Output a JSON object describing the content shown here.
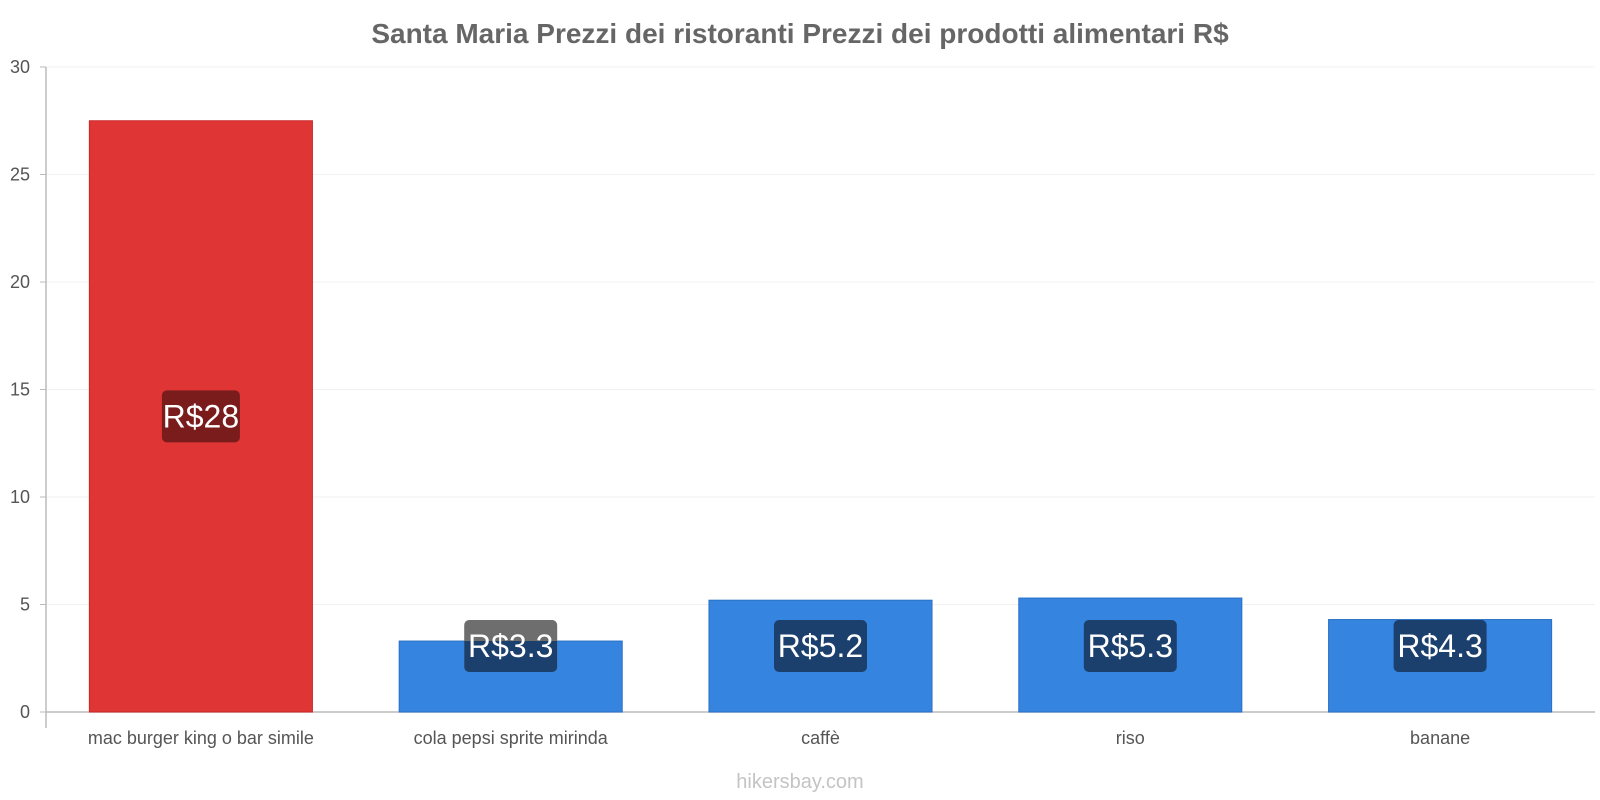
{
  "chart_data": {
    "type": "bar",
    "title": "Santa Maria Prezzi dei ristoranti Prezzi dei prodotti alimentari R$",
    "xlabel": "",
    "ylabel": "",
    "ylim": [
      0,
      30
    ],
    "yticks": [
      0,
      5,
      10,
      15,
      20,
      25,
      30
    ],
    "grid": true,
    "categories": [
      "mac burger king o bar simile",
      "cola pepsi sprite mirinda",
      "caffè",
      "riso",
      "banane"
    ],
    "values": [
      27.5,
      3.3,
      5.2,
      5.3,
      4.3
    ],
    "data_labels": [
      "R$28",
      "R$3.3",
      "R$5.2",
      "R$5.3",
      "R$4.3"
    ],
    "bar_colors": [
      "#e03535",
      "#3585e0",
      "#3585e0",
      "#3585e0",
      "#3585e0"
    ],
    "label_bg_colors": [
      "#7a1c1c",
      "#1c406e",
      "#1c406e",
      "#1c406e",
      "#1c406e"
    ],
    "label_bg_overflow_color": "#6e6e6e"
  },
  "footer": {
    "watermark": "hikersbay.com"
  }
}
